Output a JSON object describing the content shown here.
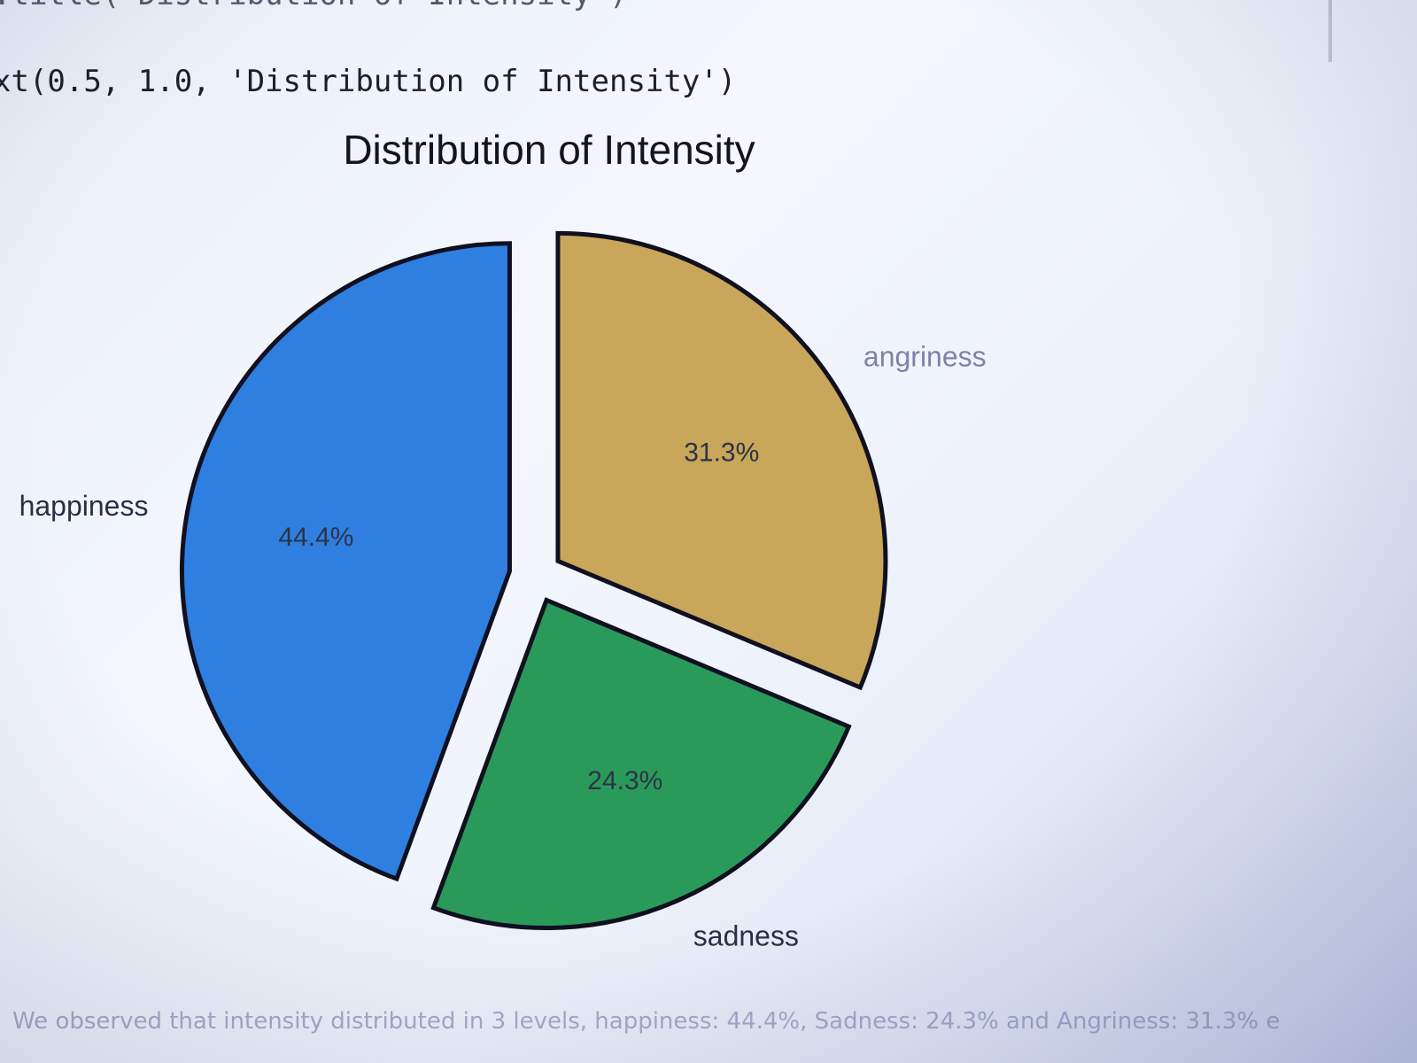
{
  "code": {
    "prev_line": ".title('Distribution of Intensity')",
    "output_line": "xt(0.5, 1.0, 'Distribution of Intensity')"
  },
  "chart_data": {
    "type": "pie",
    "title": "Distribution of Intensity",
    "labels": [
      "happiness",
      "sadness",
      "angriness"
    ],
    "values": [
      44.4,
      24.3,
      31.3
    ],
    "value_labels": [
      "44.4%",
      "24.3%",
      "31.3%"
    ],
    "colors": [
      "#2f7fe0",
      "#2a9a5a",
      "#c8a65a"
    ],
    "edge_color": "#101020",
    "exploded": true
  },
  "caption": "We observed that intensity distributed in 3 levels, happiness: 44.4%, Sadness: 24.3% and Angriness: 31.3% e"
}
